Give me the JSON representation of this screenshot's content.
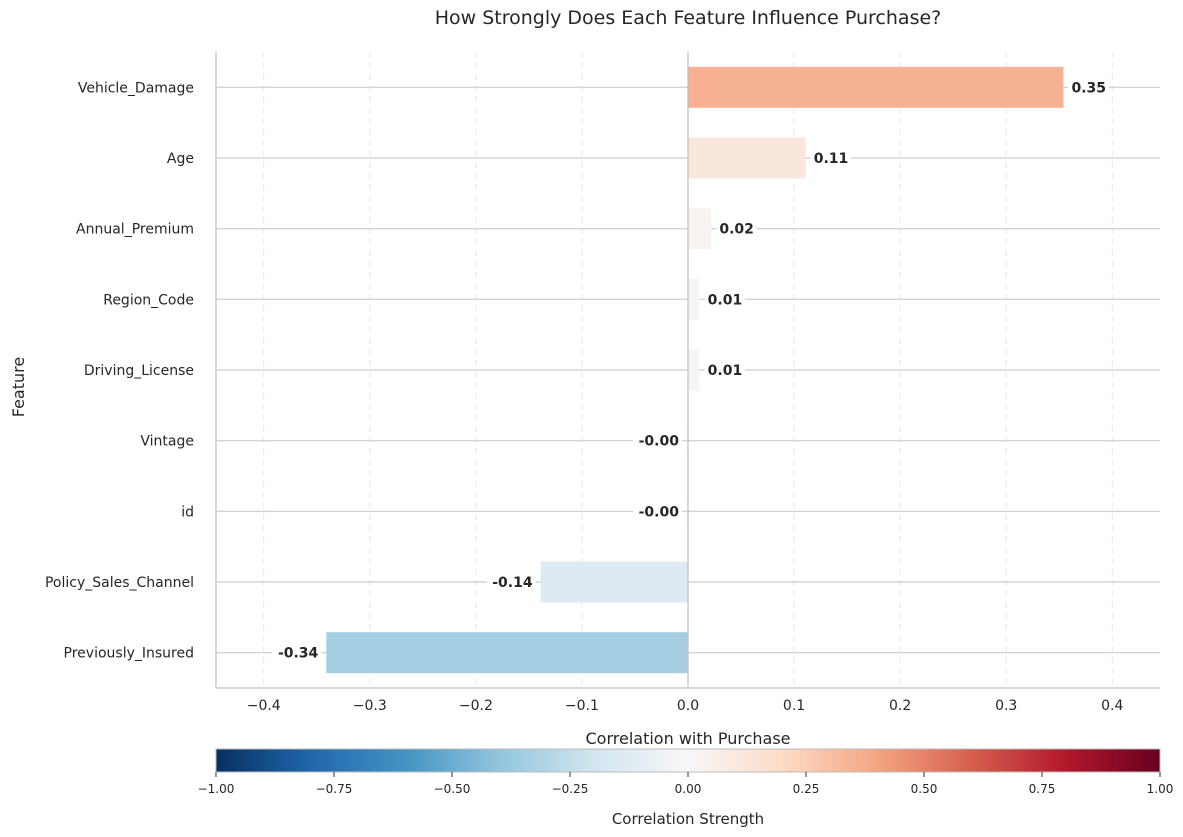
{
  "chart_data": {
    "type": "bar",
    "orientation": "horizontal",
    "title": "How Strongly Does Each Feature Influence Purchase?",
    "xlabel": "Correlation with Purchase",
    "ylabel": "Feature",
    "categories": [
      "Vehicle_Damage",
      "Age",
      "Annual_Premium",
      "Region_Code",
      "Driving_License",
      "Vintage",
      "id",
      "Policy_Sales_Channel",
      "Previously_Insured"
    ],
    "values": [
      0.354,
      0.111,
      0.022,
      0.011,
      0.011,
      -0.001,
      -0.001,
      -0.139,
      -0.341
    ],
    "value_labels": [
      "0.35",
      "0.11",
      "0.02",
      "0.01",
      "0.01",
      "-0.00",
      "-0.00",
      "-0.14",
      "-0.34"
    ],
    "xlim": [
      -0.445,
      0.445
    ],
    "x_ticks": [
      -0.4,
      -0.3,
      -0.2,
      -0.1,
      0.0,
      0.1,
      0.2,
      0.3,
      0.4
    ],
    "x_tick_labels": [
      "−0.4",
      "−0.3",
      "−0.2",
      "−0.1",
      "0.0",
      "0.1",
      "0.2",
      "0.3",
      "0.4"
    ],
    "grid": {
      "x": "dashed",
      "y": "solid"
    },
    "colormap": "RdBu_r",
    "colorbar": {
      "label": "Correlation Strength",
      "range": [
        -1.0,
        1.0
      ],
      "ticks": [
        -1.0,
        -0.75,
        -0.5,
        -0.25,
        0.0,
        0.25,
        0.5,
        0.75,
        1.0
      ],
      "tick_labels": [
        "−1.00",
        "−0.75",
        "−0.50",
        "−0.25",
        "0.00",
        "0.25",
        "0.50",
        "0.75",
        "1.00"
      ],
      "stops": [
        "#053061",
        "#2166ac",
        "#4393c3",
        "#92c5de",
        "#d1e5f0",
        "#f7f7f7",
        "#fddbc7",
        "#f4a582",
        "#d6604d",
        "#b2182b",
        "#67001f"
      ]
    }
  }
}
